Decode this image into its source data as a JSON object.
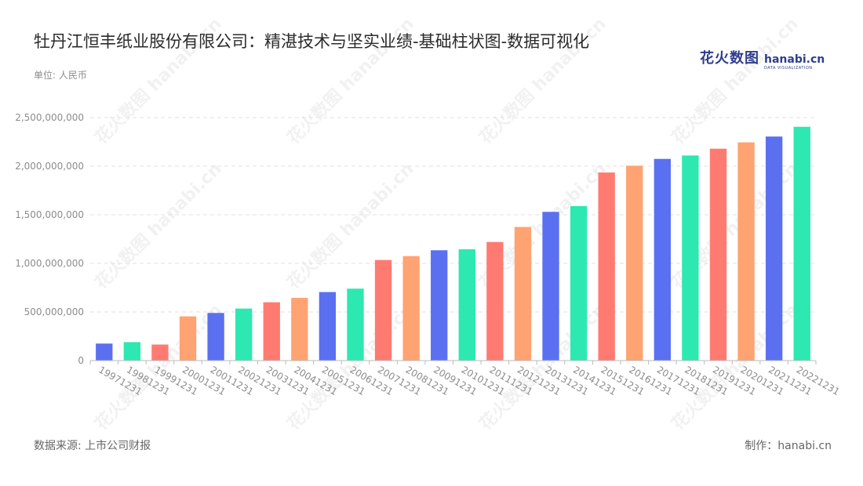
{
  "title": "牡丹江恒丰纸业股份有限公司：精湛技术与坚实业绩-基础柱状图-数据可视化",
  "unit_label": "单位: 人民币",
  "logo": {
    "cn": "花火数图",
    "en": "hanabi.cn",
    "sub": "DATA VISUALIZATION"
  },
  "watermark_text": "花火数图 hanabi.cn",
  "footer": {
    "source": "数据来源: 上市公司财报",
    "credit": "制作：hanabi.cn"
  },
  "colors": {
    "blue": "#5b70f0",
    "green": "#2de8b0",
    "red": "#ff7b72",
    "orange": "#ffa372",
    "grid": "#e0e0e0",
    "axis": "#bbbbbb",
    "tick_text": "#8c8c8c"
  },
  "chart_data": {
    "type": "bar",
    "title": "牡丹江恒丰纸业股份有限公司：精湛技术与坚实业绩-基础柱状图-数据可视化",
    "xlabel": "",
    "ylabel": "单位: 人民币",
    "ylim": [
      0,
      2500000000
    ],
    "yticks": [
      0,
      500000000,
      1000000000,
      1500000000,
      2000000000,
      2500000000
    ],
    "ytick_labels": [
      "0",
      "500,000,000",
      "1,000,000,000",
      "1,500,000,000",
      "2,000,000,000",
      "2,500,000,000"
    ],
    "grid": true,
    "categories": [
      "19971231",
      "19981231",
      "19991231",
      "20001231",
      "20011231",
      "20021231",
      "20031231",
      "20041231",
      "20051231",
      "20061231",
      "20071231",
      "20081231",
      "20091231",
      "20101231",
      "20111231",
      "20121231",
      "20131231",
      "20141231",
      "20151231",
      "20161231",
      "20171231",
      "20181231",
      "20191231",
      "20201231",
      "20211231",
      "20221231"
    ],
    "values": [
      175000000,
      190000000,
      165000000,
      455000000,
      490000000,
      535000000,
      600000000,
      645000000,
      705000000,
      740000000,
      1035000000,
      1075000000,
      1135000000,
      1145000000,
      1220000000,
      1375000000,
      1530000000,
      1590000000,
      1935000000,
      2005000000,
      2075000000,
      2110000000,
      2180000000,
      2245000000,
      2305000000,
      2405000000
    ],
    "bar_colors": [
      "blue",
      "green",
      "red",
      "orange",
      "blue",
      "green",
      "red",
      "orange",
      "blue",
      "green",
      "red",
      "orange",
      "blue",
      "green",
      "red",
      "orange",
      "blue",
      "green",
      "red",
      "orange",
      "blue",
      "green",
      "red",
      "orange",
      "blue",
      "green"
    ]
  }
}
